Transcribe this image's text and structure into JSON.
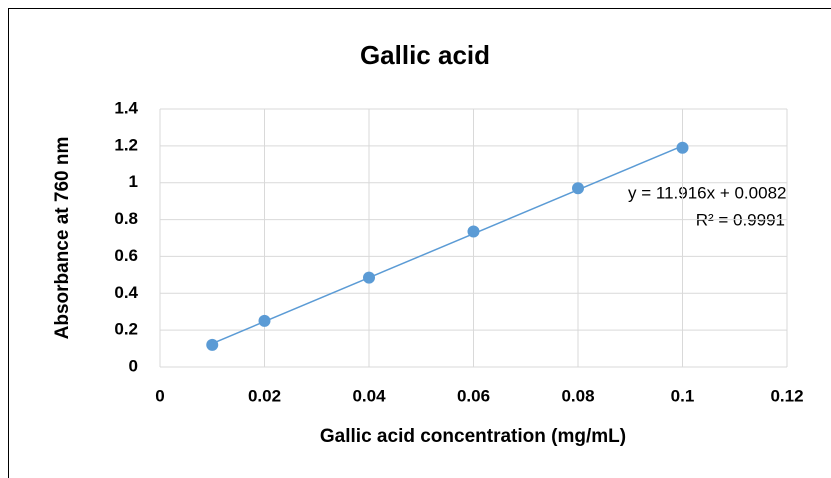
{
  "chart_data": {
    "type": "scatter",
    "title": "Gallic acid",
    "x_label": "Gallic acid concentration (mg/mL)",
    "y_label": "Absorbance at 760 nm",
    "series": [
      {
        "name": "Gallic acid",
        "color": "#5b9bd5",
        "x": [
          0.01,
          0.02,
          0.04,
          0.06,
          0.08,
          0.1
        ],
        "values": [
          0.12,
          0.25,
          0.485,
          0.735,
          0.97,
          1.19
        ]
      }
    ],
    "trendline": {
      "slope": 11.916,
      "intercept": 0.0082,
      "color": "#5b9bd5"
    },
    "annotations": [
      "y = 11.916x + 0.0082",
      "R² = 0.9991"
    ],
    "xlim": [
      0,
      0.12
    ],
    "xticks": [
      0,
      0.02,
      0.04,
      0.06,
      0.08,
      0.1,
      0.12
    ],
    "ylim": [
      0,
      1.4
    ],
    "yticks": [
      0,
      0.2,
      0.4,
      0.6,
      0.8,
      1,
      1.2,
      1.4
    ],
    "grid": true
  }
}
